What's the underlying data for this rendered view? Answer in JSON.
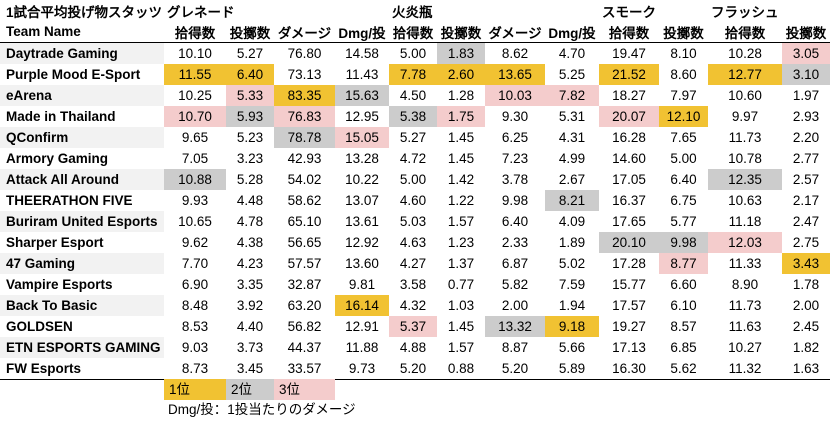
{
  "title": "1試合平均投げ物スタッツ",
  "groups": [
    "グレネード",
    "火炎瓶",
    "スモーク",
    "フラッシュ"
  ],
  "team_header": "Team Name",
  "columns": [
    "拾得数",
    "投擲数",
    "ダメージ",
    "Dmg/投",
    "拾得数",
    "投擲数",
    "ダメージ",
    "Dmg/投",
    "拾得数",
    "投擲数",
    "拾得数",
    "投擲数"
  ],
  "colors": {
    "rank1": "#f1c232",
    "rank2": "#cccccc",
    "rank3": "#f4cccc"
  },
  "rows": [
    {
      "team": "Daytrade Gaming",
      "values": [
        "10.10",
        "5.27",
        "76.80",
        "14.58",
        "5.00",
        "1.83",
        "8.62",
        "4.70",
        "19.47",
        "8.10",
        "10.28",
        "3.05"
      ],
      "ranks": [
        0,
        0,
        0,
        0,
        0,
        2,
        0,
        0,
        0,
        0,
        0,
        3
      ]
    },
    {
      "team": "Purple Mood E-Sport",
      "values": [
        "11.55",
        "6.40",
        "73.13",
        "11.43",
        "7.78",
        "2.60",
        "13.65",
        "5.25",
        "21.52",
        "8.60",
        "12.77",
        "3.10"
      ],
      "ranks": [
        1,
        1,
        0,
        0,
        1,
        1,
        1,
        0,
        1,
        0,
        1,
        2
      ]
    },
    {
      "team": "eArena",
      "values": [
        "10.25",
        "5.33",
        "83.35",
        "15.63",
        "4.50",
        "1.28",
        "10.03",
        "7.82",
        "18.27",
        "7.97",
        "10.60",
        "1.97"
      ],
      "ranks": [
        0,
        3,
        1,
        2,
        0,
        0,
        3,
        3,
        0,
        0,
        0,
        0
      ]
    },
    {
      "team": "Made in Thailand",
      "values": [
        "10.70",
        "5.93",
        "76.83",
        "12.95",
        "5.38",
        "1.75",
        "9.30",
        "5.31",
        "20.07",
        "12.10",
        "9.97",
        "2.93"
      ],
      "ranks": [
        3,
        2,
        3,
        0,
        2,
        3,
        0,
        0,
        3,
        1,
        0,
        0
      ]
    },
    {
      "team": "QConfirm",
      "values": [
        "9.65",
        "5.23",
        "78.78",
        "15.05",
        "5.27",
        "1.45",
        "6.25",
        "4.31",
        "16.28",
        "7.65",
        "11.73",
        "2.20"
      ],
      "ranks": [
        0,
        0,
        2,
        3,
        0,
        0,
        0,
        0,
        0,
        0,
        0,
        0
      ]
    },
    {
      "team": "Armory Gaming",
      "values": [
        "7.05",
        "3.23",
        "42.93",
        "13.28",
        "4.72",
        "1.45",
        "7.23",
        "4.99",
        "14.60",
        "5.00",
        "10.78",
        "2.77"
      ],
      "ranks": [
        0,
        0,
        0,
        0,
        0,
        0,
        0,
        0,
        0,
        0,
        0,
        0
      ]
    },
    {
      "team": "Attack All Around",
      "values": [
        "10.88",
        "5.28",
        "54.02",
        "10.22",
        "5.00",
        "1.42",
        "3.78",
        "2.67",
        "17.05",
        "6.40",
        "12.35",
        "2.57"
      ],
      "ranks": [
        2,
        0,
        0,
        0,
        0,
        0,
        0,
        0,
        0,
        0,
        2,
        0
      ]
    },
    {
      "team": "THEERATHON FIVE",
      "values": [
        "9.93",
        "4.48",
        "58.62",
        "13.07",
        "4.60",
        "1.22",
        "9.98",
        "8.21",
        "16.37",
        "6.75",
        "10.63",
        "2.17"
      ],
      "ranks": [
        0,
        0,
        0,
        0,
        0,
        0,
        0,
        2,
        0,
        0,
        0,
        0
      ]
    },
    {
      "team": "Buriram United Esports",
      "values": [
        "10.65",
        "4.78",
        "65.10",
        "13.61",
        "5.03",
        "1.57",
        "6.40",
        "4.09",
        "17.65",
        "5.77",
        "11.18",
        "2.47"
      ],
      "ranks": [
        0,
        0,
        0,
        0,
        0,
        0,
        0,
        0,
        0,
        0,
        0,
        0
      ]
    },
    {
      "team": "Sharper Esport",
      "values": [
        "9.62",
        "4.38",
        "56.65",
        "12.92",
        "4.63",
        "1.23",
        "2.33",
        "1.89",
        "20.10",
        "9.98",
        "12.03",
        "2.75"
      ],
      "ranks": [
        0,
        0,
        0,
        0,
        0,
        0,
        0,
        0,
        2,
        2,
        3,
        0
      ]
    },
    {
      "team": "47 Gaming",
      "values": [
        "7.70",
        "4.23",
        "57.57",
        "13.60",
        "4.27",
        "1.37",
        "6.87",
        "5.02",
        "17.28",
        "8.77",
        "11.33",
        "3.43"
      ],
      "ranks": [
        0,
        0,
        0,
        0,
        0,
        0,
        0,
        0,
        0,
        3,
        0,
        1
      ]
    },
    {
      "team": "Vampire Esports",
      "values": [
        "6.90",
        "3.35",
        "32.87",
        "9.81",
        "3.58",
        "0.77",
        "5.82",
        "7.59",
        "15.77",
        "6.60",
        "8.90",
        "1.78"
      ],
      "ranks": [
        0,
        0,
        0,
        0,
        0,
        0,
        0,
        0,
        0,
        0,
        0,
        0
      ]
    },
    {
      "team": "Back To Basic",
      "values": [
        "8.48",
        "3.92",
        "63.20",
        "16.14",
        "4.32",
        "1.03",
        "2.00",
        "1.94",
        "17.57",
        "6.10",
        "11.73",
        "2.00"
      ],
      "ranks": [
        0,
        0,
        0,
        1,
        0,
        0,
        0,
        0,
        0,
        0,
        0,
        0
      ]
    },
    {
      "team": "GOLDSEN",
      "values": [
        "8.53",
        "4.40",
        "56.82",
        "12.91",
        "5.37",
        "1.45",
        "13.32",
        "9.18",
        "19.27",
        "8.57",
        "11.63",
        "2.45"
      ],
      "ranks": [
        0,
        0,
        0,
        0,
        3,
        0,
        2,
        1,
        0,
        0,
        0,
        0
      ]
    },
    {
      "team": "ETN ESPORTS GAMING",
      "values": [
        "9.03",
        "3.73",
        "44.37",
        "11.88",
        "4.88",
        "1.57",
        "8.87",
        "5.66",
        "17.13",
        "6.85",
        "10.27",
        "1.82"
      ],
      "ranks": [
        0,
        0,
        0,
        0,
        0,
        0,
        0,
        0,
        0,
        0,
        0,
        0
      ]
    },
    {
      "team": "FW Esports",
      "values": [
        "8.73",
        "3.45",
        "33.57",
        "9.73",
        "5.20",
        "0.88",
        "5.20",
        "5.89",
        "16.30",
        "5.62",
        "11.32",
        "1.63"
      ],
      "ranks": [
        0,
        0,
        0,
        0,
        0,
        0,
        0,
        0,
        0,
        0,
        0,
        0
      ]
    }
  ],
  "legend": [
    "1位",
    "2位",
    "3位"
  ],
  "note": "Dmg/投：1投当たりのダメージ"
}
